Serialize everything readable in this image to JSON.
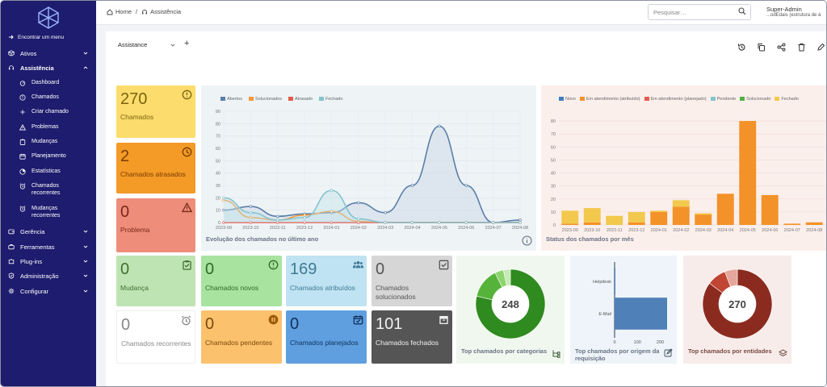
{
  "sidebar": {
    "menu_search": "Encontrar um menu",
    "items": [
      {
        "label": "Ativos",
        "icon": "box-icon"
      },
      {
        "label": "Assistência",
        "icon": "headset-icon"
      },
      {
        "label": "Gerência",
        "icon": "wallet-icon"
      },
      {
        "label": "Ferramentas",
        "icon": "briefcase-icon"
      },
      {
        "label": "Plug-ins",
        "icon": "puzzle-icon"
      },
      {
        "label": "Administração",
        "icon": "shield-check-icon"
      },
      {
        "label": "Configurar",
        "icon": "gear-icon"
      }
    ],
    "subitems": [
      {
        "label": "Dashboard",
        "icon": "dashboard-icon"
      },
      {
        "label": "Chamados",
        "icon": "alert-circle-icon"
      },
      {
        "label": "Criar chamado",
        "icon": "plus-icon"
      },
      {
        "label": "Problemas",
        "icon": "warning-icon"
      },
      {
        "label": "Mudanças",
        "icon": "clipboard-icon"
      },
      {
        "label": "Planejamento",
        "icon": "calendar-icon"
      },
      {
        "label": "Estatísticas",
        "icon": "chart-pie-icon"
      },
      {
        "label": "Chamados recorrentes",
        "icon": "alarm-icon"
      },
      {
        "label": "Mudanças recorrentes",
        "icon": "alarm-icon"
      }
    ]
  },
  "header": {
    "breadcrumb_home": "Home",
    "breadcrumb_sep": "/",
    "breadcrumb_current": "Assistência",
    "search_placeholder": "Pesquisar…",
    "user_name": "Super-Admin",
    "user_entity": "...odEdais (estrutura de á"
  },
  "dashboard": {
    "tab_label": "Assistance",
    "tab_add": "+",
    "tiles": [
      {
        "value": "270",
        "label": "Chamados",
        "icon": "alert-circle-icon",
        "bg": "#fbdc6c",
        "fg": "#7a6310"
      },
      {
        "value": "2",
        "label": "Chamados atrasados",
        "icon": "clock-icon",
        "bg": "#f39a27",
        "fg": "#7a3d00"
      },
      {
        "value": "0",
        "label": "Problema",
        "icon": "warning-icon",
        "bg": "#ee8d7a",
        "fg": "#7a2818"
      },
      {
        "value": "0",
        "label": "Mudança",
        "icon": "clipboard-check-icon",
        "bg": "#bfe4b3",
        "fg": "#3f7030"
      },
      {
        "value": "0",
        "label": "Chamados novos",
        "icon": "alert-circle-icon",
        "bg": "#a9e3a0",
        "fg": "#2f6a27"
      },
      {
        "value": "169",
        "label": "Chamados atribuídos",
        "icon": "users-icon",
        "bg": "#bfe3f2",
        "fg": "#3e7a95"
      },
      {
        "value": "0",
        "label": "Chamados solucionados",
        "icon": "checkbox-icon",
        "bg": "#d6d6d6",
        "fg": "#555555"
      },
      {
        "value": "0",
        "label": "Chamados recorrentes",
        "icon": "alarm-icon",
        "bg": "#ffffff",
        "fg": "#888888"
      },
      {
        "value": "0",
        "label": "Chamados pendentes",
        "icon": "pause-icon",
        "bg": "#fcc16d",
        "fg": "#7a4a0a"
      },
      {
        "value": "0",
        "label": "Chamados planejados",
        "icon": "calendar-check-icon",
        "bg": "#5f9fe0",
        "fg": "#10325c"
      },
      {
        "value": "101",
        "label": "Chamados fechados",
        "icon": "archive-icon",
        "bg": "#555555",
        "fg": "#f1f1f1"
      }
    ],
    "colors": {
      "line_bg": "#eef3f6",
      "bar_bg": "#fbefec",
      "cat_bg": "#f0f7ee",
      "origin_bg": "#eef4f9",
      "ent_bg": "#f7ecea"
    }
  },
  "line_chart": {
    "title": "Evolução dos chamados no último ano",
    "categories": [
      "2023-09",
      "2023-10",
      "2023-11",
      "2023-12",
      "2024-01",
      "2024-02",
      "2024-03",
      "2024-04",
      "2024-05",
      "2024-06",
      "2024-07",
      "2024-08"
    ],
    "yticks": [
      0,
      10,
      20,
      30,
      40,
      50,
      60,
      70,
      80,
      90
    ],
    "ylim": [
      0,
      90
    ],
    "series": [
      {
        "name": "Abertos",
        "color": "#5b7fa8",
        "values": [
          10,
          13,
          5,
          7,
          8,
          16,
          8,
          30,
          78,
          30,
          0,
          2
        ]
      },
      {
        "name": "Solucionados",
        "color": "#f5983a",
        "values": [
          18,
          4,
          2,
          6,
          9,
          1,
          0,
          0,
          0,
          0,
          0,
          0
        ]
      },
      {
        "name": "Atrasado",
        "color": "#e35b4f",
        "values": [
          0,
          0,
          0,
          0,
          0,
          0,
          0,
          0,
          0,
          0,
          0,
          0
        ]
      },
      {
        "name": "Fechado",
        "color": "#84c3cf",
        "values": [
          20,
          8,
          2,
          4,
          26,
          3,
          0,
          0,
          0,
          0,
          0,
          0
        ]
      }
    ]
  },
  "bar_chart": {
    "title": "Status dos chamados por mês",
    "categories": [
      "2023-09",
      "2023-10",
      "2023-11",
      "2023-12",
      "2024-01",
      "2024-02",
      "2024-03",
      "2024-04",
      "2024-05",
      "2024-06",
      "2024-07",
      "2024-08"
    ],
    "yticks": [
      0,
      10,
      20,
      30,
      40,
      50,
      60,
      70,
      80
    ],
    "ylim": [
      0,
      85
    ],
    "legend": [
      {
        "name": "Novo",
        "color": "#3f7dc0"
      },
      {
        "name": "Em atendimento (atribuído)",
        "color": "#f39228"
      },
      {
        "name": "Em atendimento (planejado)",
        "color": "#e35b4f"
      },
      {
        "name": "Pendente",
        "color": "#84c3cf"
      },
      {
        "name": "Solucionado",
        "color": "#52b042"
      },
      {
        "name": "Fechado",
        "color": "#f2c94c"
      }
    ],
    "series": [
      {
        "name": "Em atendimento (atribuído)",
        "color": "#f39228",
        "values": [
          1,
          2,
          0,
          2,
          10,
          14,
          8,
          24,
          80,
          23,
          1,
          2
        ]
      },
      {
        "name": "Fechado",
        "color": "#f2c94c",
        "values": [
          10,
          11,
          7,
          8,
          1,
          5,
          1,
          0,
          0,
          0,
          0,
          0
        ]
      }
    ]
  },
  "donut_categories": {
    "title": "Top chamados por categorias",
    "center": "248",
    "icon": "tree-icon",
    "slices": [
      {
        "value": 195,
        "color": "#2f8a1f"
      },
      {
        "value": 35,
        "color": "#56b33a"
      },
      {
        "value": 10,
        "color": "#8dd46e"
      },
      {
        "value": 8,
        "color": "#c7eab5"
      }
    ]
  },
  "bar_origin": {
    "title": "Top chamados por origem da requisição",
    "icon": "edit-icon",
    "categories": [
      "Helpdesk",
      "E-Mail"
    ],
    "values": [
      1,
      230
    ],
    "xticks": [
      0,
      100,
      200
    ],
    "xlim": [
      0,
      230
    ]
  },
  "donut_entities": {
    "title": "Top chamados por entidades",
    "center": "270",
    "icon": "layers-icon",
    "slices": [
      {
        "value": 230,
        "color": "#8b2b1f"
      },
      {
        "value": 24,
        "color": "#c04533"
      },
      {
        "value": 16,
        "color": "#e5a79b"
      }
    ]
  }
}
